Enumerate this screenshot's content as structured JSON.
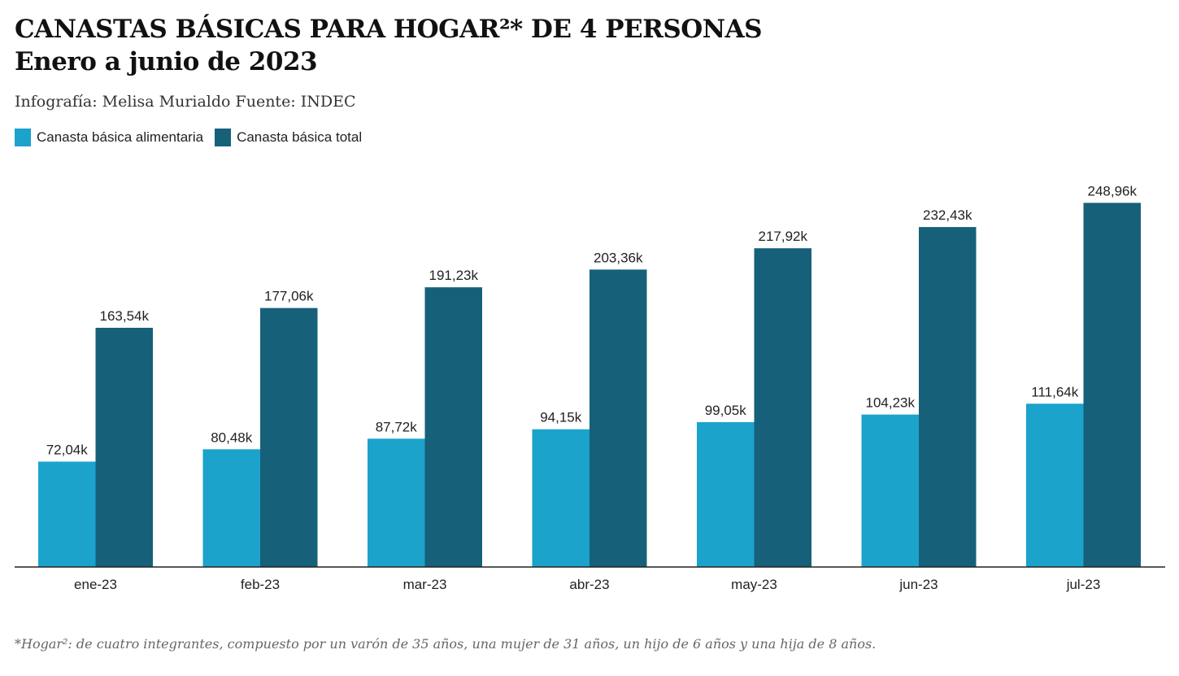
{
  "chart_data": {
    "type": "bar",
    "title_line1": "CANASTAS BÁSICAS PARA HOGAR²* DE 4 PERSONAS",
    "title_line2": "Enero a junio de 2023",
    "subtitle": "Infografía: Melisa Murialdo Fuente: INDEC",
    "footnote": "*Hogar²: de cuatro integrantes, compuesto por un varón de 35 años, una mujer de 31 años, un hijo de 6 años y una hija de 8 años.",
    "categories": [
      "ene-23",
      "feb-23",
      "mar-23",
      "abr-23",
      "may-23",
      "jun-23",
      "jul-23"
    ],
    "series": [
      {
        "name": "Canasta básica alimentaria",
        "color": "#1ba3cc",
        "values": [
          72.04,
          80.48,
          87.72,
          94.15,
          99.05,
          104.23,
          111.64
        ],
        "labels": [
          "72,04k",
          "80,48k",
          "87,72k",
          "94,15k",
          "99,05k",
          "104,23k",
          "111,64k"
        ]
      },
      {
        "name": "Canasta básica total",
        "color": "#17607a",
        "values": [
          163.54,
          177.06,
          191.23,
          203.36,
          217.92,
          232.43,
          248.96
        ],
        "labels": [
          "163,54k",
          "177,06k",
          "191,23k",
          "203,36k",
          "217,92k",
          "232,43k",
          "248,96k"
        ]
      }
    ],
    "unit": "k",
    "ylim": [
      0,
      260
    ],
    "grid": false,
    "legend": "top-left"
  }
}
